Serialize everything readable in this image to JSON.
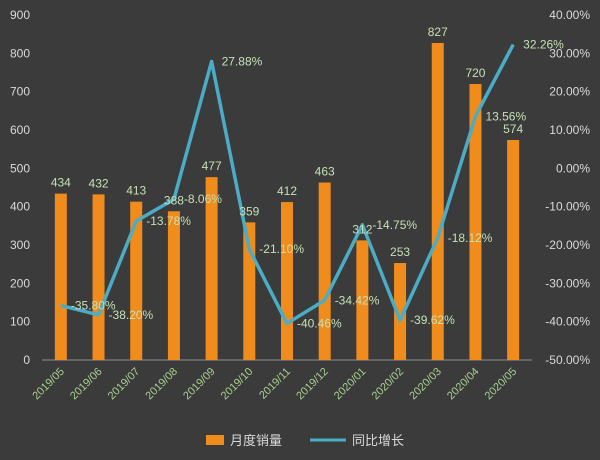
{
  "chart_data": {
    "type": "bar+line",
    "categories": [
      "2019/05",
      "2019/06",
      "2019/07",
      "2019/08",
      "2019/09",
      "2019/10",
      "2019/11",
      "2019/12",
      "2020/01",
      "2020/02",
      "2020/03",
      "2020/04",
      "2020/05"
    ],
    "series": [
      {
        "name": "月度销量",
        "type": "bar",
        "axis": "left",
        "values": [
          434,
          432,
          413,
          388,
          477,
          359,
          412,
          463,
          312,
          253,
          827,
          720,
          574
        ],
        "labels": [
          "434",
          "432",
          "413",
          "388",
          "477",
          "359",
          "412",
          "463",
          "312",
          "253",
          "827",
          "720",
          "574"
        ],
        "color": "#f08c1c"
      },
      {
        "name": "同比增长",
        "type": "line",
        "axis": "right",
        "values": [
          -35.8,
          -38.2,
          -13.78,
          -8.06,
          27.88,
          -21.1,
          -40.46,
          -34.42,
          -14.75,
          -39.62,
          -18.12,
          13.56,
          32.26
        ],
        "labels": [
          "-35.80%",
          "-38.20%",
          "-13.78%",
          "-8.06%",
          "27.88%",
          "-21.10%",
          "-40.46%",
          "-34.42%",
          "-14.75%",
          "-39.62%",
          "-18.12%",
          "13.56%",
          "32.26%"
        ],
        "color": "#4bacc6"
      }
    ],
    "y_left": {
      "min": 0,
      "max": 900,
      "ticks": [
        "0",
        "100",
        "200",
        "300",
        "400",
        "500",
        "600",
        "700",
        "800",
        "900"
      ]
    },
    "y_right": {
      "min": -50,
      "max": 40,
      "ticks": [
        "-50.00%",
        "-40.00%",
        "-30.00%",
        "-20.00%",
        "-10.00%",
        "0.00%",
        "10.00%",
        "20.00%",
        "30.00%",
        "40.00%"
      ]
    },
    "grid": false,
    "legend_position": "bottom",
    "background": "#3b3b3b"
  }
}
